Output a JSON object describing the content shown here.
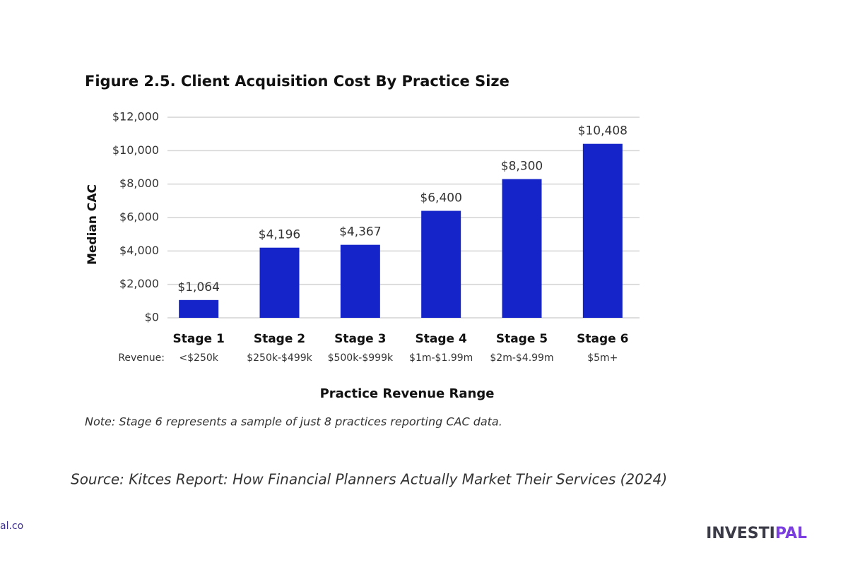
{
  "chart_data": {
    "type": "bar",
    "title": "Figure 2.5. Client Acquisition Cost By Practice Size",
    "y_label": "Median CAC",
    "x_label": "Practice Revenue Range",
    "categories": [
      "Stage 1",
      "Stage 2",
      "Stage 3",
      "Stage 4",
      "Stage 5",
      "Stage 6"
    ],
    "revenue_label": "Revenue:",
    "revenue_ranges": [
      "<$250k",
      "$250k-$499k",
      "$500k-$999k",
      "$1m-$1.99m",
      "$2m-$4.99m",
      "$5m+"
    ],
    "values": [
      1064,
      4196,
      4367,
      6400,
      8300,
      10408
    ],
    "value_labels": [
      "$1,064",
      "$4,196",
      "$4,367",
      "$6,400",
      "$8,300",
      "$10,408"
    ],
    "color": "#1424c8",
    "ylim": [
      0,
      12000
    ],
    "yticks": [
      {
        "value": 0,
        "label": "$0"
      },
      {
        "value": 2000,
        "label": "$2,000"
      },
      {
        "value": 4000,
        "label": "$4,000"
      },
      {
        "value": 6000,
        "label": "$6,000"
      },
      {
        "value": 8000,
        "label": "$8,000"
      },
      {
        "value": 10000,
        "label": "$10,000"
      },
      {
        "value": 12000,
        "label": "$12,000"
      }
    ],
    "grid": true,
    "note": "Note: Stage 6 represents a sample of just 8 practices reporting CAC data."
  },
  "source": "Source: Kitces Report: How Financial Planners Actually Market Their Services (2024)",
  "website_fragment": "al.co",
  "logo": "INVESTIPAL"
}
